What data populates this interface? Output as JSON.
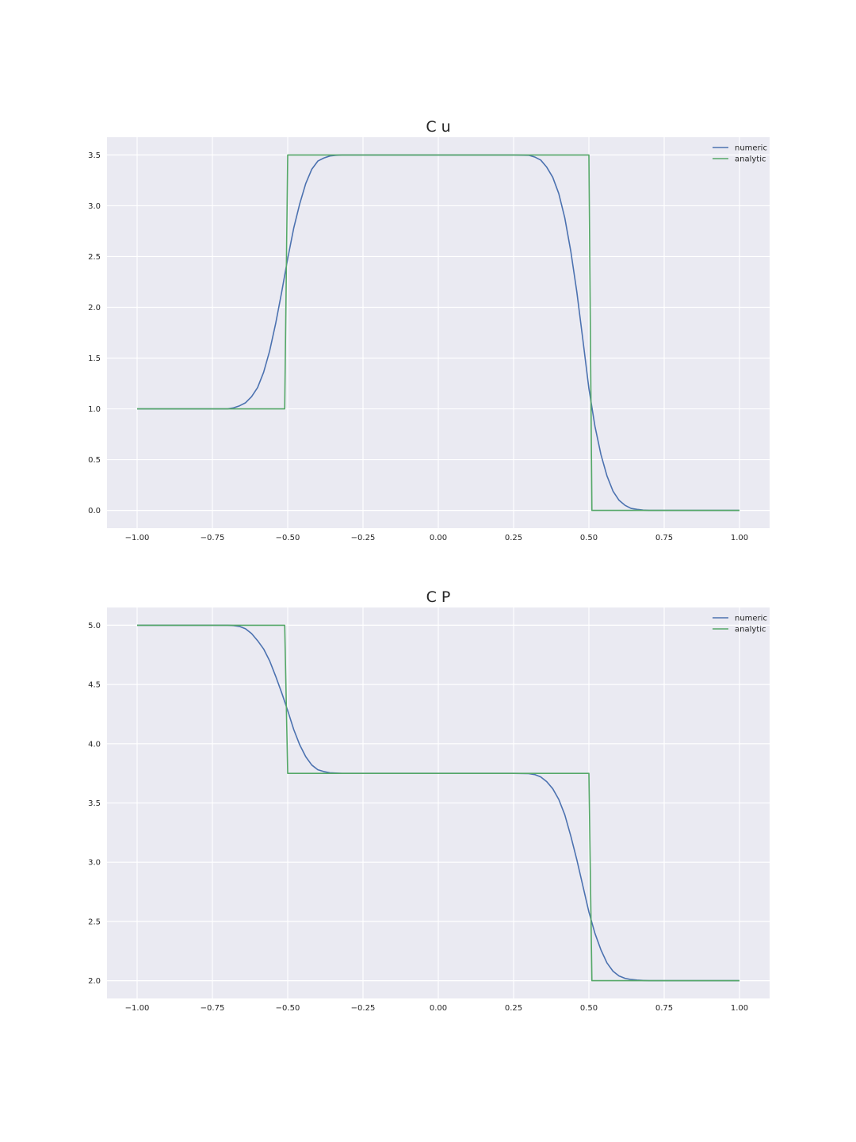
{
  "chart_data": [
    {
      "type": "line",
      "title": "C u",
      "xlabel": "",
      "ylabel": "",
      "xlim": [
        -1.1,
        1.1
      ],
      "ylim": [
        -0.175,
        3.675
      ],
      "x_ticks": [
        -1.0,
        -0.75,
        -0.5,
        -0.25,
        0.0,
        0.25,
        0.5,
        0.75,
        1.0
      ],
      "x_tick_labels": [
        "−1.00",
        "−0.75",
        "−0.50",
        "−0.25",
        "0.00",
        "0.25",
        "0.50",
        "0.75",
        "1.00"
      ],
      "y_ticks": [
        0.0,
        0.5,
        1.0,
        1.5,
        2.0,
        2.5,
        3.0,
        3.5
      ],
      "y_tick_labels": [
        "0.0",
        "0.5",
        "1.0",
        "1.5",
        "2.0",
        "2.5",
        "3.0",
        "3.5"
      ],
      "grid": true,
      "legend_position": "top-right",
      "series": [
        {
          "name": "numeric",
          "color": "#4c72b0",
          "x": [
            -1.0,
            -0.7,
            -0.68,
            -0.66,
            -0.64,
            -0.62,
            -0.6,
            -0.58,
            -0.56,
            -0.54,
            -0.52,
            -0.5,
            -0.48,
            -0.46,
            -0.44,
            -0.42,
            -0.4,
            -0.38,
            -0.36,
            -0.34,
            -0.32,
            -0.3,
            -0.25,
            0.25,
            0.3,
            0.32,
            0.34,
            0.36,
            0.38,
            0.4,
            0.42,
            0.44,
            0.46,
            0.48,
            0.5,
            0.52,
            0.54,
            0.56,
            0.58,
            0.6,
            0.62,
            0.64,
            0.66,
            0.68,
            0.7,
            0.75,
            1.0
          ],
          "y": [
            1.0,
            1.0,
            1.01,
            1.03,
            1.06,
            1.12,
            1.21,
            1.36,
            1.57,
            1.84,
            2.15,
            2.48,
            2.78,
            3.02,
            3.22,
            3.36,
            3.44,
            3.47,
            3.49,
            3.497,
            3.5,
            3.5,
            3.5,
            3.5,
            3.497,
            3.48,
            3.45,
            3.38,
            3.28,
            3.12,
            2.88,
            2.55,
            2.15,
            1.68,
            1.2,
            0.83,
            0.55,
            0.34,
            0.19,
            0.1,
            0.05,
            0.02,
            0.01,
            0.003,
            0.0,
            0.0,
            0.0
          ]
        },
        {
          "name": "analytic",
          "color": "#55a868",
          "x": [
            -1.0,
            -0.51,
            -0.5,
            0.5,
            0.51,
            1.0
          ],
          "y": [
            1.0,
            1.0,
            3.5,
            3.5,
            0.0,
            0.0
          ]
        }
      ]
    },
    {
      "type": "line",
      "title": "C P",
      "xlabel": "",
      "ylabel": "",
      "xlim": [
        -1.1,
        1.1
      ],
      "ylim": [
        1.85,
        5.15
      ],
      "x_ticks": [
        -1.0,
        -0.75,
        -0.5,
        -0.25,
        0.0,
        0.25,
        0.5,
        0.75,
        1.0
      ],
      "x_tick_labels": [
        "−1.00",
        "−0.75",
        "−0.50",
        "−0.25",
        "0.00",
        "0.25",
        "0.50",
        "0.75",
        "1.00"
      ],
      "y_ticks": [
        2.0,
        2.5,
        3.0,
        3.5,
        4.0,
        4.5,
        5.0
      ],
      "y_tick_labels": [
        "2.0",
        "2.5",
        "3.0",
        "3.5",
        "4.0",
        "4.5",
        "5.0"
      ],
      "grid": true,
      "legend_position": "top-right",
      "series": [
        {
          "name": "numeric",
          "color": "#4c72b0",
          "x": [
            -1.0,
            -0.7,
            -0.68,
            -0.66,
            -0.64,
            -0.62,
            -0.6,
            -0.58,
            -0.56,
            -0.54,
            -0.52,
            -0.5,
            -0.48,
            -0.46,
            -0.44,
            -0.42,
            -0.4,
            -0.38,
            -0.36,
            -0.34,
            -0.32,
            -0.3,
            -0.25,
            0.25,
            0.3,
            0.32,
            0.34,
            0.36,
            0.38,
            0.4,
            0.42,
            0.44,
            0.46,
            0.48,
            0.5,
            0.52,
            0.54,
            0.56,
            0.58,
            0.6,
            0.62,
            0.64,
            0.66,
            0.68,
            0.7,
            0.75,
            1.0
          ],
          "y": [
            5.0,
            5.0,
            4.997,
            4.99,
            4.97,
            4.93,
            4.87,
            4.8,
            4.7,
            4.57,
            4.43,
            4.28,
            4.12,
            3.99,
            3.89,
            3.82,
            3.78,
            3.765,
            3.755,
            3.752,
            3.75,
            3.75,
            3.75,
            3.75,
            3.748,
            3.74,
            3.72,
            3.68,
            3.62,
            3.53,
            3.4,
            3.22,
            3.02,
            2.8,
            2.58,
            2.4,
            2.26,
            2.15,
            2.08,
            2.04,
            2.02,
            2.01,
            2.005,
            2.002,
            2.0,
            2.0,
            2.0
          ]
        },
        {
          "name": "analytic",
          "color": "#55a868",
          "x": [
            -1.0,
            -0.51,
            -0.5,
            0.5,
            0.51,
            1.0
          ],
          "y": [
            5.0,
            5.0,
            3.75,
            3.75,
            2.0,
            2.0
          ]
        }
      ]
    }
  ]
}
